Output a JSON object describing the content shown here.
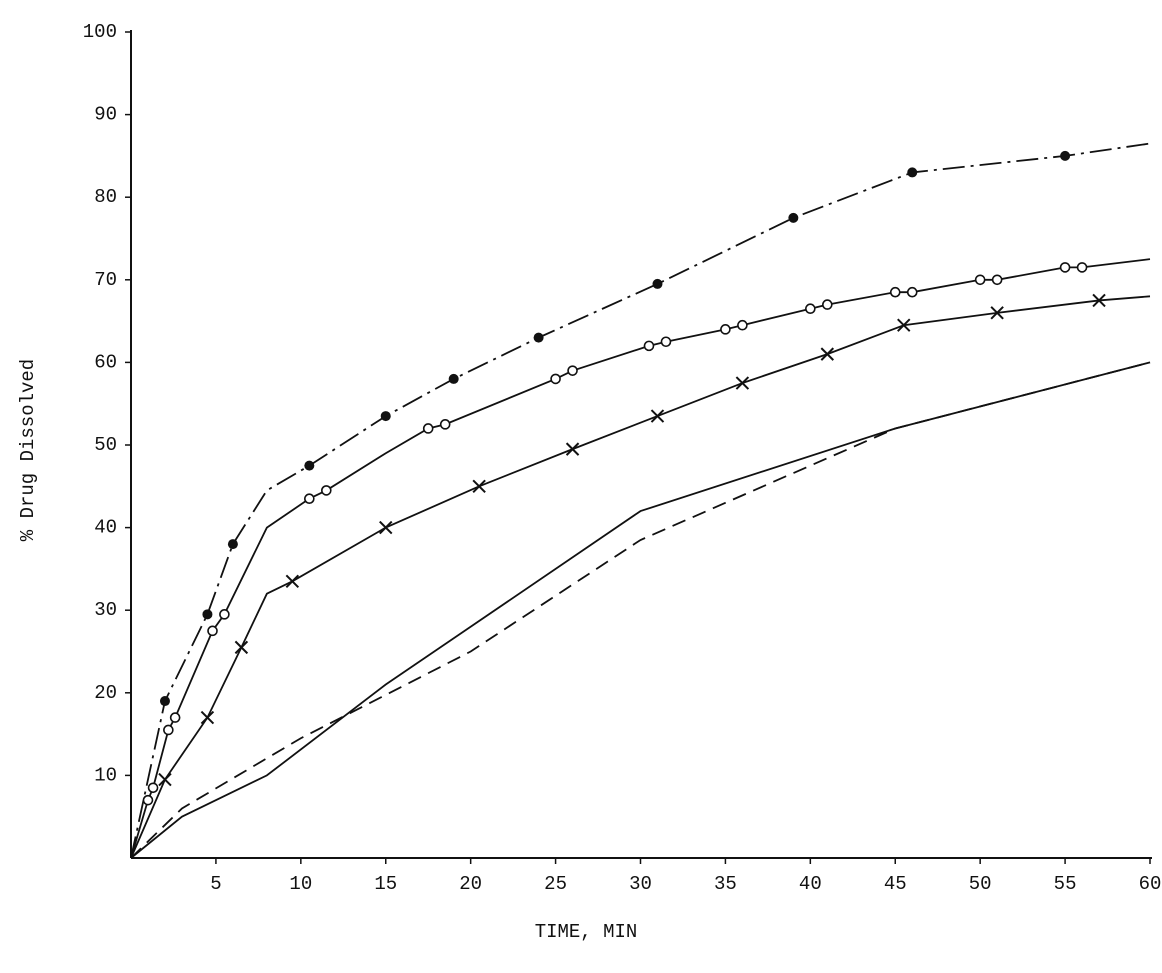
{
  "chart_data": {
    "type": "line",
    "x_label": "TIME, MIN",
    "y_label": "% Drug Dissolved",
    "xlim": [
      0,
      60
    ],
    "ylim": [
      0,
      100
    ],
    "xticks": [
      5,
      10,
      15,
      20,
      25,
      30,
      35,
      40,
      45,
      50,
      55,
      60
    ],
    "yticks": [
      10,
      20,
      30,
      40,
      50,
      60,
      70,
      80,
      90,
      100
    ],
    "series": [
      {
        "color": "#111111",
        "marker": "filled-circle",
        "dash": "dash-dot",
        "x": [
          0,
          2,
          4.5,
          6,
          8,
          10.5,
          15,
          19,
          24,
          31,
          39,
          46,
          55,
          60
        ],
        "values": [
          0,
          19,
          29.5,
          38,
          44.5,
          47.5,
          53.5,
          58,
          63,
          69.5,
          77.5,
          83,
          85,
          86.5
        ],
        "marked": [
          false,
          true,
          true,
          true,
          false,
          true,
          true,
          true,
          true,
          true,
          true,
          true,
          true,
          false
        ]
      },
      {
        "color": "#111111",
        "marker": "open-circle",
        "dash": "solid",
        "x": [
          0,
          1,
          1.3,
          2.2,
          2.6,
          4.8,
          5.5,
          8,
          10.5,
          11.5,
          15,
          17.5,
          18.5,
          25,
          26,
          30.5,
          31.5,
          35,
          36,
          40,
          41,
          45,
          46,
          50,
          51,
          55,
          56,
          60
        ],
        "values": [
          0,
          7,
          8.5,
          15.5,
          17,
          27.5,
          29.5,
          40,
          43.5,
          44.5,
          49,
          52,
          52.5,
          58,
          59,
          62,
          62.5,
          64,
          64.5,
          66.5,
          67,
          68.5,
          68.5,
          70,
          70,
          71.5,
          71.5,
          72.5
        ],
        "marked": [
          false,
          true,
          true,
          true,
          true,
          true,
          true,
          false,
          true,
          true,
          false,
          true,
          true,
          true,
          true,
          true,
          true,
          true,
          true,
          true,
          true,
          true,
          true,
          true,
          true,
          true,
          true,
          false
        ]
      },
      {
        "color": "#111111",
        "marker": "cross",
        "dash": "solid",
        "x": [
          0,
          2,
          4.5,
          6.5,
          8,
          9.5,
          15,
          20.5,
          26,
          31,
          36,
          41,
          45.5,
          51,
          57,
          60
        ],
        "values": [
          0,
          9.5,
          17,
          25.5,
          32,
          33.5,
          40,
          45,
          49.5,
          53.5,
          57.5,
          61,
          64.5,
          66,
          67.5,
          68
        ],
        "marked": [
          false,
          true,
          true,
          true,
          false,
          true,
          true,
          true,
          true,
          true,
          true,
          true,
          true,
          true,
          true,
          false
        ]
      },
      {
        "color": "#111111",
        "marker": "none",
        "dash": "solid",
        "x": [
          0,
          3,
          8,
          15,
          30,
          45,
          60
        ],
        "values": [
          0,
          5,
          10,
          21,
          42,
          52,
          60
        ]
      },
      {
        "color": "#111111",
        "marker": "none",
        "dash": "dashed",
        "x": [
          0,
          3,
          10,
          20,
          30,
          45,
          60
        ],
        "values": [
          0,
          6,
          14.5,
          25,
          38.5,
          52,
          60
        ]
      }
    ]
  }
}
